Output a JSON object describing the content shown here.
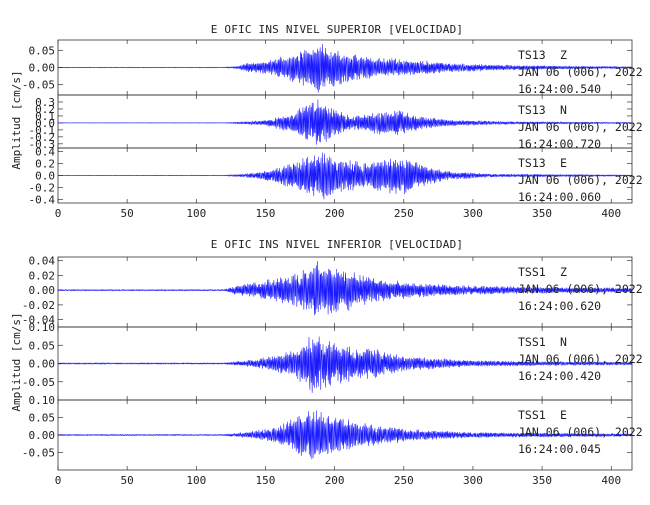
{
  "chart_data": [
    {
      "type": "line",
      "title": "E OFIC INS NIVEL SUPERIOR [VELOCIDAD]",
      "ylabel": "Amplitud [cm/s]",
      "xlabel": "",
      "xlim": [
        0,
        415
      ],
      "xticks": [
        0,
        50,
        100,
        150,
        200,
        250,
        300,
        350,
        400
      ],
      "grid": false,
      "line_color": "#1a1aff",
      "series": [
        {
          "name": "TS13 Z",
          "station": "TS13",
          "component": "Z",
          "date": "JAN 06 (006), 2022",
          "time": "16:24:00.540",
          "ylim": [
            -0.08,
            0.08
          ],
          "yticks": [
            0.05,
            0.0,
            -0.05
          ],
          "ytick_labels": [
            "0.05",
            "0.00",
            "-0.05"
          ],
          "peak": 0.075,
          "envelope": [
            {
              "x": 0,
              "a": 0.001
            },
            {
              "x": 120,
              "a": 0.001
            },
            {
              "x": 130,
              "a": 0.004
            },
            {
              "x": 135,
              "a": 0.012
            },
            {
              "x": 150,
              "a": 0.02
            },
            {
              "x": 165,
              "a": 0.035
            },
            {
              "x": 178,
              "a": 0.06
            },
            {
              "x": 188,
              "a": 0.075
            },
            {
              "x": 200,
              "a": 0.06
            },
            {
              "x": 215,
              "a": 0.04
            },
            {
              "x": 230,
              "a": 0.03
            },
            {
              "x": 250,
              "a": 0.025
            },
            {
              "x": 280,
              "a": 0.015
            },
            {
              "x": 320,
              "a": 0.008
            },
            {
              "x": 380,
              "a": 0.004
            },
            {
              "x": 415,
              "a": 0.003
            }
          ]
        },
        {
          "name": "TS13 N",
          "station": "TS13",
          "component": "N",
          "date": "JAN 06 (006), 2022",
          "time": "16:24:00.720",
          "ylim": [
            -0.36,
            0.4
          ],
          "yticks": [
            0.3,
            0.2,
            0.1,
            0.0,
            -0.1,
            -0.2,
            -0.3
          ],
          "ytick_labels": [
            "0.3",
            "0.2",
            "0.1",
            "0.0",
            "-0.1",
            "-0.2",
            "-0.3"
          ],
          "peak": 0.34,
          "envelope": [
            {
              "x": 0,
              "a": 0.003
            },
            {
              "x": 120,
              "a": 0.004
            },
            {
              "x": 135,
              "a": 0.02
            },
            {
              "x": 150,
              "a": 0.04
            },
            {
              "x": 165,
              "a": 0.12
            },
            {
              "x": 178,
              "a": 0.25
            },
            {
              "x": 188,
              "a": 0.34
            },
            {
              "x": 200,
              "a": 0.2
            },
            {
              "x": 213,
              "a": 0.1
            },
            {
              "x": 225,
              "a": 0.15
            },
            {
              "x": 245,
              "a": 0.2
            },
            {
              "x": 265,
              "a": 0.08
            },
            {
              "x": 290,
              "a": 0.04
            },
            {
              "x": 330,
              "a": 0.02
            },
            {
              "x": 415,
              "a": 0.008
            }
          ]
        },
        {
          "name": "TS13 E",
          "station": "TS13",
          "component": "E",
          "date": "JAN 06 (006), 2022",
          "time": "16:24:00.060",
          "ylim": [
            -0.46,
            0.46
          ],
          "yticks": [
            0.4,
            0.2,
            0.0,
            -0.2,
            -0.4
          ],
          "ytick_labels": [
            "0.4",
            "0.2",
            "0.0",
            "-0.2",
            "-0.4"
          ],
          "peak": 0.4,
          "envelope": [
            {
              "x": 0,
              "a": 0.004
            },
            {
              "x": 120,
              "a": 0.006
            },
            {
              "x": 135,
              "a": 0.03
            },
            {
              "x": 150,
              "a": 0.08
            },
            {
              "x": 165,
              "a": 0.2
            },
            {
              "x": 180,
              "a": 0.32
            },
            {
              "x": 192,
              "a": 0.4
            },
            {
              "x": 205,
              "a": 0.3
            },
            {
              "x": 220,
              "a": 0.22
            },
            {
              "x": 240,
              "a": 0.3
            },
            {
              "x": 252,
              "a": 0.32
            },
            {
              "x": 265,
              "a": 0.18
            },
            {
              "x": 280,
              "a": 0.08
            },
            {
              "x": 310,
              "a": 0.03
            },
            {
              "x": 415,
              "a": 0.01
            }
          ]
        }
      ]
    },
    {
      "type": "line",
      "title": "E OFIC INS NIVEL INFERIOR [VELOCIDAD]",
      "ylabel": "Amplitud [cm/s]",
      "xlabel": "",
      "xlim": [
        0,
        415
      ],
      "xticks": [
        0,
        50,
        100,
        150,
        200,
        250,
        300,
        350,
        400
      ],
      "grid": false,
      "line_color": "#1a1aff",
      "series": [
        {
          "name": "TSS1 Z",
          "station": "TSS1",
          "component": "Z",
          "date": "JAN 06 (006), 2022",
          "time": "16:24:00.620",
          "ylim": [
            -0.05,
            0.045
          ],
          "yticks": [
            0.04,
            0.02,
            0.0,
            -0.02,
            -0.04
          ],
          "ytick_labels": [
            "0.04",
            "0.02",
            "0.00",
            "-0.02",
            "-0.04"
          ],
          "peak": 0.04,
          "envelope": [
            {
              "x": 0,
              "a": 0.001
            },
            {
              "x": 120,
              "a": 0.001
            },
            {
              "x": 128,
              "a": 0.006
            },
            {
              "x": 140,
              "a": 0.01
            },
            {
              "x": 160,
              "a": 0.018
            },
            {
              "x": 175,
              "a": 0.025
            },
            {
              "x": 188,
              "a": 0.04
            },
            {
              "x": 200,
              "a": 0.035
            },
            {
              "x": 215,
              "a": 0.025
            },
            {
              "x": 235,
              "a": 0.015
            },
            {
              "x": 260,
              "a": 0.01
            },
            {
              "x": 300,
              "a": 0.006
            },
            {
              "x": 360,
              "a": 0.004
            },
            {
              "x": 415,
              "a": 0.003
            }
          ]
        },
        {
          "name": "TSS1 N",
          "station": "TSS1",
          "component": "N",
          "date": "JAN 06 (006), 2022",
          "time": "16:24:00.420",
          "ylim": [
            -0.1,
            0.1
          ],
          "yticks": [
            0.1,
            0.05,
            0.0,
            -0.05
          ],
          "ytick_labels": [
            "0.10",
            "0.05",
            "0.00",
            "-0.05"
          ],
          "peak": 0.085,
          "envelope": [
            {
              "x": 0,
              "a": 0.002
            },
            {
              "x": 120,
              "a": 0.002
            },
            {
              "x": 135,
              "a": 0.008
            },
            {
              "x": 155,
              "a": 0.02
            },
            {
              "x": 172,
              "a": 0.04
            },
            {
              "x": 185,
              "a": 0.085
            },
            {
              "x": 195,
              "a": 0.07
            },
            {
              "x": 210,
              "a": 0.05
            },
            {
              "x": 230,
              "a": 0.04
            },
            {
              "x": 255,
              "a": 0.02
            },
            {
              "x": 300,
              "a": 0.008
            },
            {
              "x": 415,
              "a": 0.004
            }
          ]
        },
        {
          "name": "TSS1 E",
          "station": "TSS1",
          "component": "E",
          "date": "JAN 06 (006), 2022",
          "time": "16:24:00.045",
          "ylim": [
            -0.1,
            0.1
          ],
          "yticks": [
            0.1,
            0.05,
            0.0,
            -0.05
          ],
          "ytick_labels": [
            "0.10",
            "0.05",
            "0.00",
            "-0.05"
          ],
          "peak": 0.08,
          "envelope": [
            {
              "x": 0,
              "a": 0.002
            },
            {
              "x": 120,
              "a": 0.002
            },
            {
              "x": 135,
              "a": 0.008
            },
            {
              "x": 155,
              "a": 0.02
            },
            {
              "x": 172,
              "a": 0.05
            },
            {
              "x": 182,
              "a": 0.08
            },
            {
              "x": 195,
              "a": 0.06
            },
            {
              "x": 210,
              "a": 0.045
            },
            {
              "x": 230,
              "a": 0.03
            },
            {
              "x": 260,
              "a": 0.015
            },
            {
              "x": 300,
              "a": 0.008
            },
            {
              "x": 415,
              "a": 0.004
            }
          ]
        }
      ]
    }
  ]
}
